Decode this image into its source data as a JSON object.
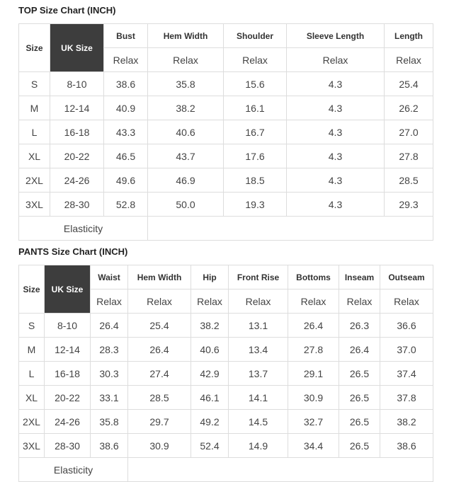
{
  "top": {
    "title": "TOP Size Chart (INCH)",
    "headers": [
      "Size",
      "UK Size",
      "Bust",
      "Hem Width",
      "Shoulder",
      "Sleeve Length",
      "Length"
    ],
    "subheaders": [
      "Relax",
      "Relax",
      "Relax",
      "Relax",
      "Relax"
    ],
    "rows": [
      [
        "S",
        "8-10",
        "38.6",
        "35.8",
        "15.6",
        "4.3",
        "25.4"
      ],
      [
        "M",
        "12-14",
        "40.9",
        "38.2",
        "16.1",
        "4.3",
        "26.2"
      ],
      [
        "L",
        "16-18",
        "43.3",
        "40.6",
        "16.7",
        "4.3",
        "27.0"
      ],
      [
        "XL",
        "20-22",
        "46.5",
        "43.7",
        "17.6",
        "4.3",
        "27.8"
      ],
      [
        "2XL",
        "24-26",
        "49.6",
        "46.9",
        "18.5",
        "4.3",
        "28.5"
      ],
      [
        "3XL",
        "28-30",
        "52.8",
        "50.0",
        "19.3",
        "4.3",
        "29.3"
      ]
    ],
    "footer": "Elasticity"
  },
  "pants": {
    "title": "PANTS Size Chart (INCH)",
    "headers": [
      "Size",
      "UK Size",
      "Waist",
      "Hem Width",
      "Hip",
      "Front Rise",
      "Bottoms",
      "Inseam",
      "Outseam"
    ],
    "subheaders": [
      "Relax",
      "Relax",
      "Relax",
      "Relax",
      "Relax",
      "Relax",
      "Relax"
    ],
    "rows": [
      [
        "S",
        "8-10",
        "26.4",
        "25.4",
        "38.2",
        "13.1",
        "26.4",
        "26.3",
        "36.6"
      ],
      [
        "M",
        "12-14",
        "28.3",
        "26.4",
        "40.6",
        "13.4",
        "27.8",
        "26.4",
        "37.0"
      ],
      [
        "L",
        "16-18",
        "30.3",
        "27.4",
        "42.9",
        "13.7",
        "29.1",
        "26.5",
        "37.4"
      ],
      [
        "XL",
        "20-22",
        "33.1",
        "28.5",
        "46.1",
        "14.1",
        "30.9",
        "26.5",
        "37.8"
      ],
      [
        "2XL",
        "24-26",
        "35.8",
        "29.7",
        "49.2",
        "14.5",
        "32.7",
        "26.5",
        "38.2"
      ],
      [
        "3XL",
        "28-30",
        "38.6",
        "30.9",
        "52.4",
        "14.9",
        "34.4",
        "26.5",
        "38.6"
      ]
    ],
    "footer": "Elasticity"
  }
}
